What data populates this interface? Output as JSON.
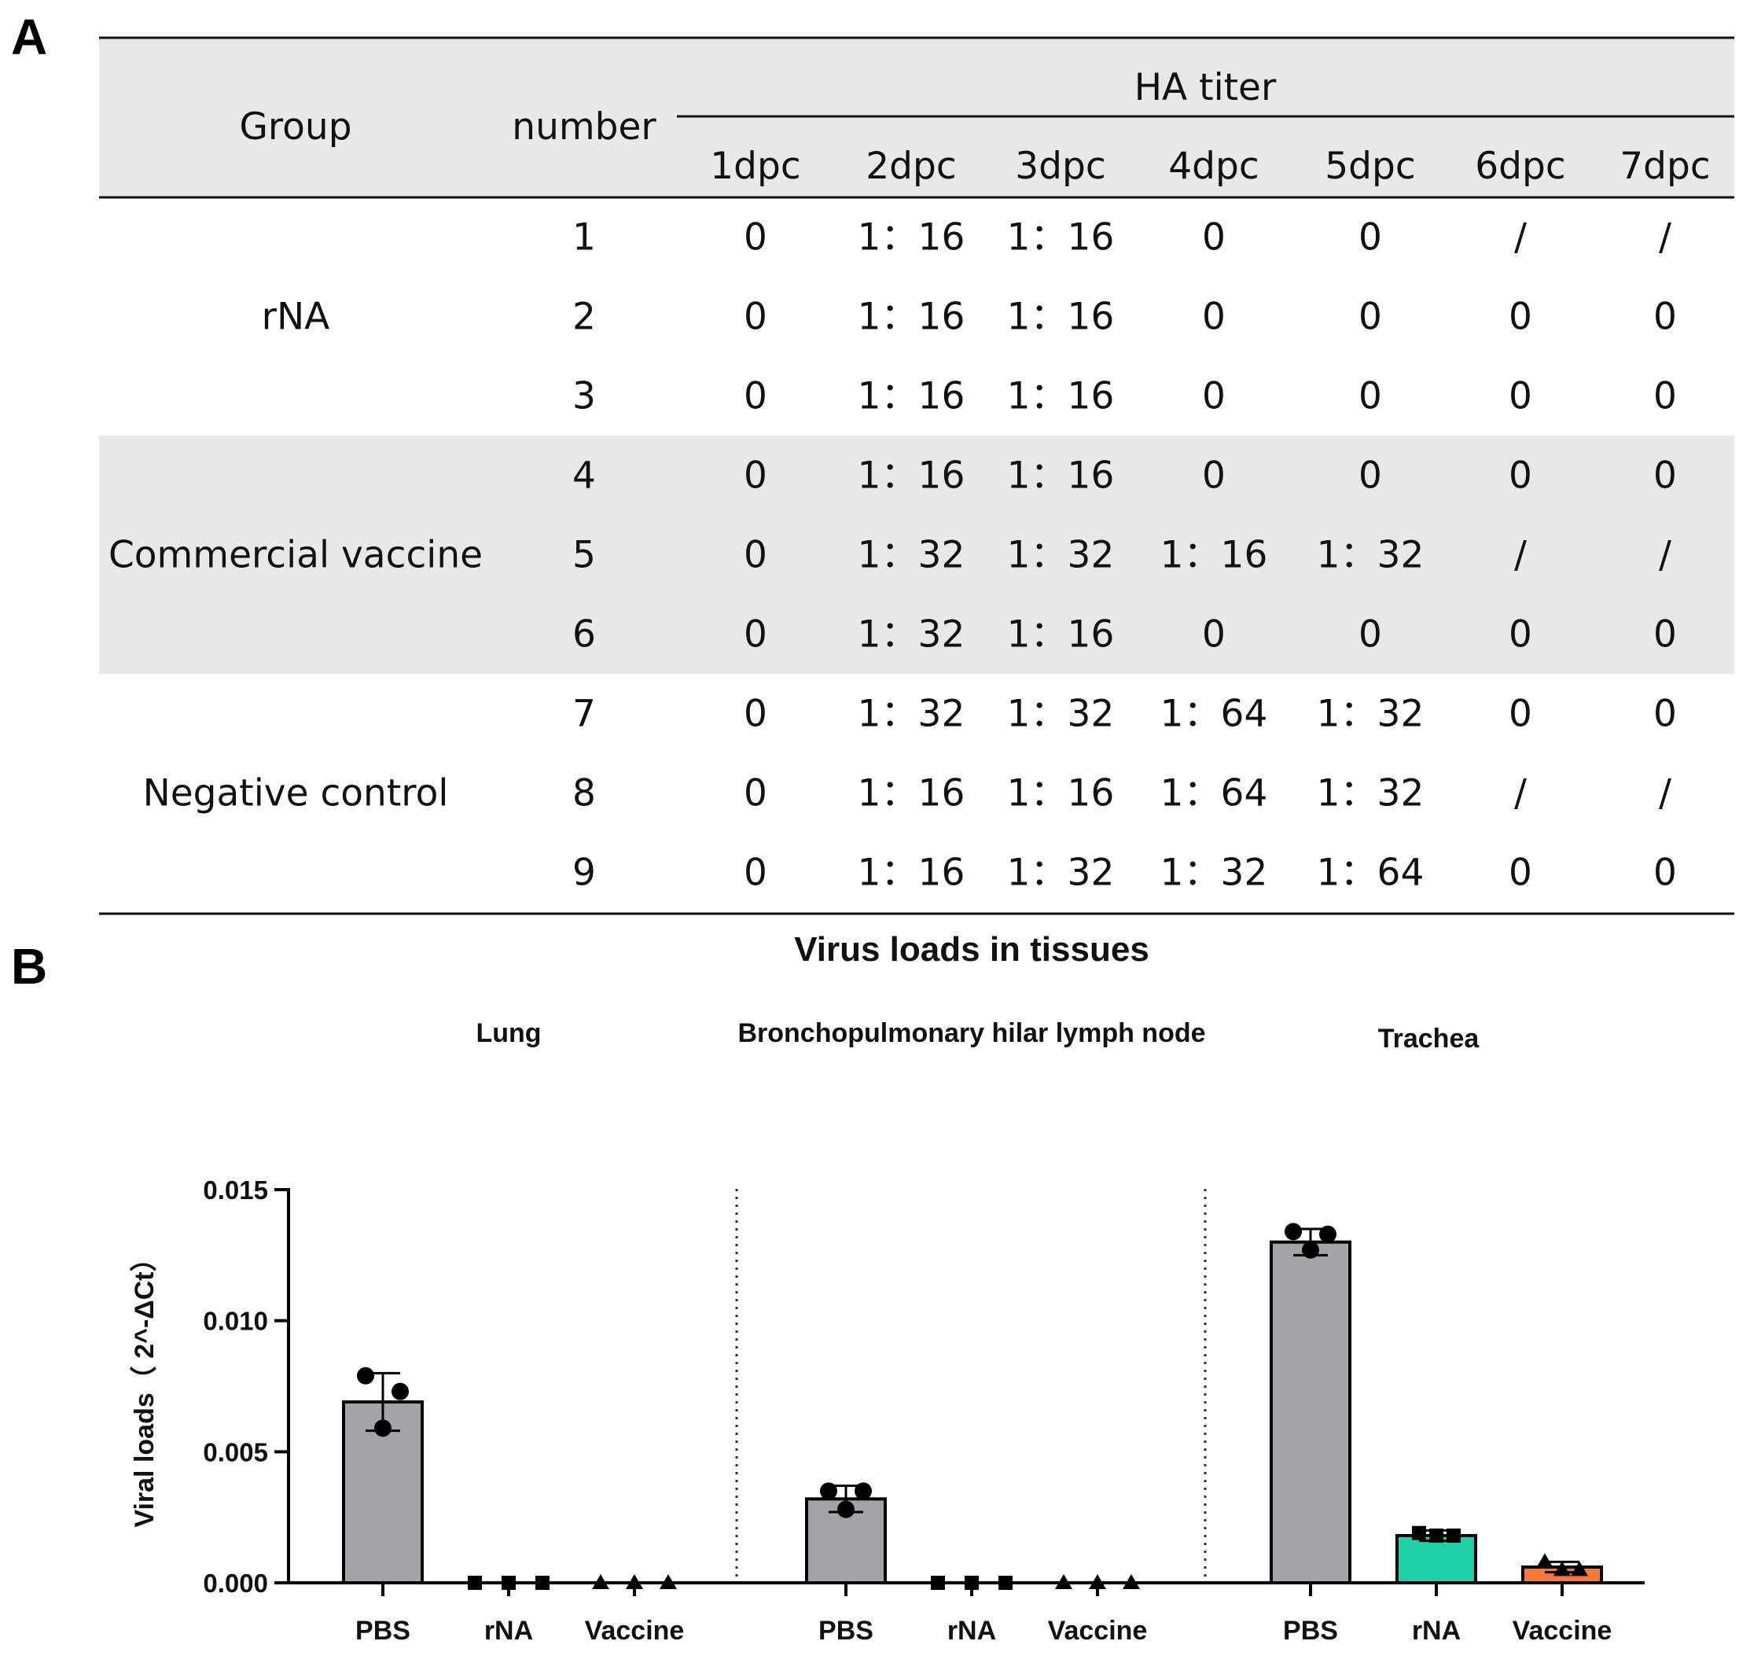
{
  "panel_a_label": "A",
  "panel_b_label": "B",
  "table": {
    "col_group": "Group",
    "col_number": "number",
    "ha_titer_header": "HA titer",
    "days": [
      "1dpc",
      "2dpc",
      "3dpc",
      "4dpc",
      "5dpc",
      "6dpc",
      "7dpc"
    ],
    "groups": [
      {
        "name": "rNA",
        "shaded": false,
        "rows": [
          {
            "number": "1",
            "values": [
              "0",
              "1：16",
              "1：16",
              "0",
              "0",
              "/",
              "/"
            ]
          },
          {
            "number": "2",
            "values": [
              "0",
              "1：16",
              "1：16",
              "0",
              "0",
              "0",
              "0"
            ]
          },
          {
            "number": "3",
            "values": [
              "0",
              "1：16",
              "1：16",
              "0",
              "0",
              "0",
              "0"
            ]
          }
        ]
      },
      {
        "name": "Commercial vaccine",
        "shaded": true,
        "rows": [
          {
            "number": "4",
            "values": [
              "0",
              "1：16",
              "1：16",
              "0",
              "0",
              "0",
              "0"
            ]
          },
          {
            "number": "5",
            "values": [
              "0",
              "1：32",
              "1：32",
              "1：16",
              "1：32",
              "/",
              "/"
            ]
          },
          {
            "number": "6",
            "values": [
              "0",
              "1：32",
              "1：16",
              "0",
              "0",
              "0",
              "0"
            ]
          }
        ]
      },
      {
        "name": "Negative control",
        "shaded": false,
        "rows": [
          {
            "number": "7",
            "values": [
              "0",
              "1：32",
              "1：32",
              "1：64",
              "1：32",
              "0",
              "0"
            ]
          },
          {
            "number": "8",
            "values": [
              "0",
              "1：16",
              "1：16",
              "1：64",
              "1：32",
              "/",
              "/"
            ]
          },
          {
            "number": "9",
            "values": [
              "0",
              "1：16",
              "1：32",
              "1：32",
              "1：64",
              "0",
              "0"
            ]
          }
        ]
      }
    ]
  },
  "chart_data": {
    "type": "bar",
    "title": "Virus loads in tissues",
    "ylabel": "Viral loads（ 2^-ΔCt）",
    "ylim": [
      0,
      0.015
    ],
    "yticks": [
      "0.000",
      "0.005",
      "0.010",
      "0.015"
    ],
    "categories": [
      "PBS",
      "rNA",
      "Vaccine"
    ],
    "series_colors": {
      "PBS": "#a4a4a8",
      "rNA": "#1fcfa8",
      "Vaccine": "#f5793b"
    },
    "markers": {
      "PBS": "circle",
      "rNA": "square",
      "Vaccine": "triangle"
    },
    "panels": [
      {
        "tissue": "Lung",
        "bars": [
          {
            "group": "PBS",
            "mean": 0.0069,
            "sd": 0.0011,
            "points": [
              0.0079,
              0.0073,
              0.0059
            ]
          },
          {
            "group": "rNA",
            "mean": 0.0,
            "sd": 0.0,
            "points": [
              0.0,
              0.0,
              0.0
            ]
          },
          {
            "group": "Vaccine",
            "mean": 0.0,
            "sd": 0.0,
            "points": [
              0.0,
              0.0,
              0.0
            ]
          }
        ]
      },
      {
        "tissue": "Bronchopulmonary hilar lymph node",
        "bars": [
          {
            "group": "PBS",
            "mean": 0.0032,
            "sd": 0.0005,
            "points": [
              0.0035,
              0.0035,
              0.0028
            ]
          },
          {
            "group": "rNA",
            "mean": 0.0,
            "sd": 0.0,
            "points": [
              0.0,
              0.0,
              0.0
            ]
          },
          {
            "group": "Vaccine",
            "mean": 0.0,
            "sd": 0.0,
            "points": [
              0.0,
              0.0,
              0.0
            ]
          }
        ]
      },
      {
        "tissue": "Trachea",
        "bars": [
          {
            "group": "PBS",
            "mean": 0.013,
            "sd": 0.0005,
            "points": [
              0.0134,
              0.0133,
              0.0127
            ]
          },
          {
            "group": "rNA",
            "mean": 0.0018,
            "sd": 0.0002,
            "points": [
              0.0019,
              0.0018,
              0.0018
            ]
          },
          {
            "group": "Vaccine",
            "mean": 0.0006,
            "sd": 0.0002,
            "points": [
              0.0008,
              0.0005,
              0.0005
            ]
          }
        ]
      }
    ]
  }
}
